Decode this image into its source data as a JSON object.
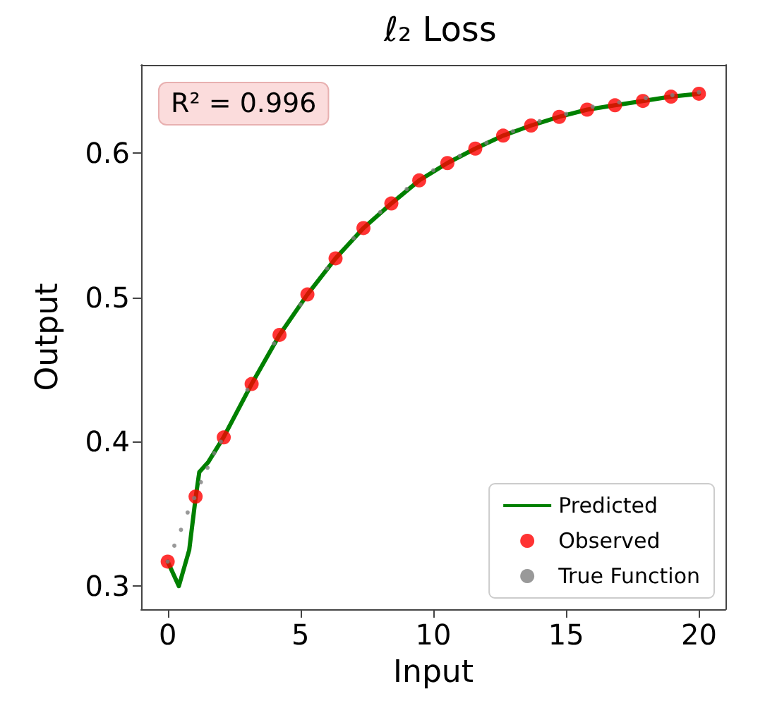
{
  "chart_data": {
    "type": "line",
    "title": "ℓ₂ Loss",
    "xlabel": "Input",
    "ylabel": "Output",
    "xlim": [
      -1,
      21
    ],
    "xticks": [
      0,
      5,
      10,
      15,
      20
    ],
    "ylim": [
      0.284,
      0.661
    ],
    "yticks": [
      0.3,
      0.4,
      0.5,
      0.6
    ],
    "grid": false,
    "legend": "bottom right",
    "annotations": [
      "R² = 0.996"
    ],
    "series": [
      {
        "name": "Predicted",
        "color": "#008000",
        "line_style": "solid",
        "marker": "none",
        "x": [
          0,
          0.42,
          0.81,
          1.05,
          1.19,
          1.53,
          2.1,
          3.16,
          4.21,
          5.26,
          6.32,
          7.37,
          8.42,
          9.47,
          10.53,
          11.58,
          12.63,
          13.68,
          14.74,
          15.79,
          16.84,
          17.89,
          18.95,
          20
        ],
        "values": [
          0.317,
          0.3,
          0.325,
          0.361,
          0.379,
          0.386,
          0.403,
          0.44,
          0.474,
          0.502,
          0.527,
          0.548,
          0.565,
          0.581,
          0.593,
          0.603,
          0.612,
          0.619,
          0.625,
          0.63,
          0.633,
          0.636,
          0.639,
          0.641
        ]
      },
      {
        "name": "Observed",
        "type": "scatter",
        "color": "#ff0000",
        "marker": "circle",
        "x": [
          0,
          1.05,
          2.11,
          3.16,
          4.21,
          5.26,
          6.32,
          7.37,
          8.42,
          9.47,
          10.53,
          11.58,
          12.63,
          13.68,
          14.74,
          15.79,
          16.84,
          17.89,
          18.95,
          20
        ],
        "values": [
          0.317,
          0.362,
          0.403,
          0.44,
          0.474,
          0.502,
          0.527,
          0.548,
          0.565,
          0.581,
          0.593,
          0.603,
          0.612,
          0.619,
          0.625,
          0.63,
          0.633,
          0.636,
          0.639,
          0.641
        ]
      },
      {
        "name": "True Function",
        "type": "scatter",
        "color": "#808080",
        "marker": "circle",
        "x": [
          0,
          0.25,
          0.5,
          0.75,
          1,
          1.25,
          1.5,
          1.75,
          2,
          3,
          4,
          5,
          6,
          7,
          8,
          9,
          10,
          11,
          12,
          13,
          14,
          15,
          16,
          17,
          18,
          19,
          20
        ],
        "values": [
          0.317,
          0.328,
          0.339,
          0.351,
          0.361,
          0.372,
          0.382,
          0.392,
          0.4,
          0.436,
          0.468,
          0.495,
          0.52,
          0.541,
          0.559,
          0.575,
          0.588,
          0.598,
          0.607,
          0.615,
          0.622,
          0.627,
          0.632,
          0.635,
          0.638,
          0.64,
          0.642
        ]
      }
    ]
  }
}
